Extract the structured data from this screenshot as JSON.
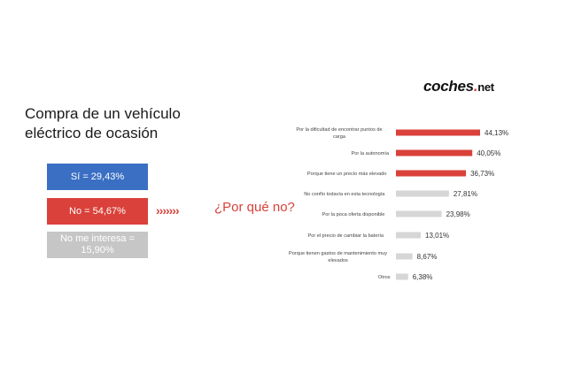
{
  "logo": {
    "main": "coches",
    "dot": ".",
    "suffix": "net"
  },
  "title": "Compra de un vehículo eléctrico de ocasión",
  "summary": {
    "si": "Sí = 29,43%",
    "no": "No = 54,67%",
    "no_interesa": "No me interesa = 15,90%"
  },
  "arrows": "›››››››",
  "question": "¿Por qué no?",
  "colors": {
    "red": "#d9413a",
    "blue": "#3a6fc4",
    "gray": "#d6d6d6"
  },
  "chart_data": {
    "type": "bar",
    "orientation": "horizontal",
    "categories": [
      "Por la dificultad de encontrar puntos de carga",
      "Por la autonomía",
      "Porque tiene un precio más elevado",
      "No confío todavía en esta tecnología",
      "Por la poca oferta disponible",
      "Por el precio de cambiar la batería",
      "Porque tienen gastos de mantenimiento muy elevados",
      "Otros"
    ],
    "values": [
      44.13,
      40.05,
      36.73,
      27.81,
      23.98,
      13.01,
      8.67,
      6.38
    ],
    "value_labels": [
      "44,13%",
      "40,05%",
      "36,73%",
      "27,81%",
      "23,98%",
      "13,01%",
      "8,67%",
      "6,38%"
    ],
    "bar_colors": [
      "#d9413a",
      "#d9413a",
      "#d9413a",
      "#d6d6d6",
      "#d6d6d6",
      "#d6d6d6",
      "#d6d6d6",
      "#d6d6d6"
    ],
    "xlim": [
      0,
      44.13
    ],
    "title": "",
    "xlabel": "",
    "ylabel": "",
    "grid": false
  }
}
